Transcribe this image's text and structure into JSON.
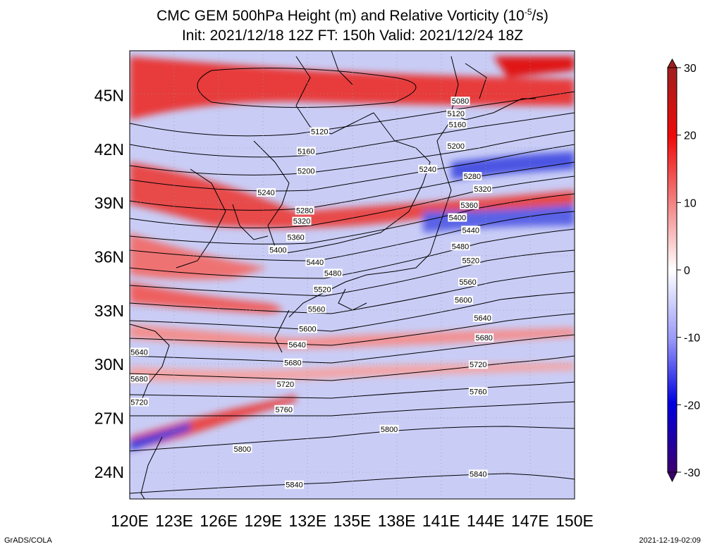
{
  "title": {
    "line1_main": "CMC GEM 500hPa Height (m) and Relative Vorticity (10",
    "line1_exp": "-5",
    "line1_tail": "/s)",
    "line2": "Init: 2021/12/18 12Z  FT: 150h  Valid: 2021/12/24 18Z"
  },
  "map": {
    "lon_labels": [
      "120E",
      "123E",
      "126E",
      "129E",
      "132E",
      "135E",
      "138E",
      "141E",
      "144E",
      "147E",
      "150E"
    ],
    "lat_labels": [
      "45N",
      "42N",
      "39N",
      "36N",
      "33N",
      "30N",
      "27N",
      "24N"
    ],
    "lon_range": [
      120,
      150
    ],
    "lat_range": [
      22.5,
      47.5
    ],
    "grid_dotted": true
  },
  "contours": [
    {
      "label": "5080",
      "lon": 142.3,
      "lat": 44.7
    },
    {
      "label": "5120",
      "lon": 132.8,
      "lat": 43.0
    },
    {
      "label": "5120",
      "lon": 142.0,
      "lat": 44.0
    },
    {
      "label": "5160",
      "lon": 131.9,
      "lat": 41.9
    },
    {
      "label": "5160",
      "lon": 142.1,
      "lat": 43.4
    },
    {
      "label": "5200",
      "lon": 131.9,
      "lat": 40.8
    },
    {
      "label": "5200",
      "lon": 142.0,
      "lat": 42.2
    },
    {
      "label": "5240",
      "lon": 129.2,
      "lat": 39.6
    },
    {
      "label": "5240",
      "lon": 140.1,
      "lat": 40.9
    },
    {
      "label": "5280",
      "lon": 131.8,
      "lat": 38.6
    },
    {
      "label": "5280",
      "lon": 143.1,
      "lat": 40.5
    },
    {
      "label": "5320",
      "lon": 131.6,
      "lat": 38.0
    },
    {
      "label": "5320",
      "lon": 143.8,
      "lat": 39.8
    },
    {
      "label": "5360",
      "lon": 131.2,
      "lat": 37.1
    },
    {
      "label": "5360",
      "lon": 142.9,
      "lat": 38.9
    },
    {
      "label": "5400",
      "lon": 130.0,
      "lat": 36.4
    },
    {
      "label": "5400",
      "lon": 142.1,
      "lat": 38.2
    },
    {
      "label": "5440",
      "lon": 132.5,
      "lat": 35.7
    },
    {
      "label": "5440",
      "lon": 143.0,
      "lat": 37.5
    },
    {
      "label": "5480",
      "lon": 133.7,
      "lat": 35.1
    },
    {
      "label": "5480",
      "lon": 142.3,
      "lat": 36.6
    },
    {
      "label": "5520",
      "lon": 133.0,
      "lat": 34.2
    },
    {
      "label": "5520",
      "lon": 143.0,
      "lat": 35.8
    },
    {
      "label": "5560",
      "lon": 132.6,
      "lat": 33.1
    },
    {
      "label": "5560",
      "lon": 142.8,
      "lat": 34.6
    },
    {
      "label": "5600",
      "lon": 132.0,
      "lat": 32.0
    },
    {
      "label": "5600",
      "lon": 142.5,
      "lat": 33.6
    },
    {
      "label": "5640",
      "lon": 131.3,
      "lat": 31.1
    },
    {
      "label": "5640",
      "lon": 143.8,
      "lat": 32.6
    },
    {
      "label": "5640",
      "lon": 120.2,
      "lat": 30.7
    },
    {
      "label": "5680",
      "lon": 131.0,
      "lat": 30.1
    },
    {
      "label": "5680",
      "lon": 143.9,
      "lat": 31.5
    },
    {
      "label": "5680",
      "lon": 120.2,
      "lat": 29.2
    },
    {
      "label": "5720",
      "lon": 130.5,
      "lat": 28.9
    },
    {
      "label": "5720",
      "lon": 143.5,
      "lat": 30.0
    },
    {
      "label": "5720",
      "lon": 120.2,
      "lat": 27.9
    },
    {
      "label": "5760",
      "lon": 130.4,
      "lat": 27.5
    },
    {
      "label": "5760",
      "lon": 143.5,
      "lat": 28.5
    },
    {
      "label": "5800",
      "lon": 137.5,
      "lat": 26.4
    },
    {
      "label": "5800",
      "lon": 127.6,
      "lat": 25.3
    },
    {
      "label": "5840",
      "lon": 143.5,
      "lat": 23.9
    },
    {
      "label": "5840",
      "lon": 131.1,
      "lat": 23.3
    }
  ],
  "colorbar": {
    "ticks": [
      "30",
      "20",
      "10",
      "0",
      "-10",
      "-20",
      "-30"
    ],
    "colors": [
      "#3d0070",
      "#1a00a0",
      "#0000e0",
      "#5555f5",
      "#9a9af8",
      "#d4d4fb",
      "#ffffff",
      "#f6d0d0",
      "#f59a9a",
      "#f25555",
      "#ef0a0a",
      "#cc1a1a",
      "#a01e1e"
    ]
  },
  "footer": {
    "credit": "GrADS/COLA",
    "timestamp": "2021-12-19-02:09"
  }
}
